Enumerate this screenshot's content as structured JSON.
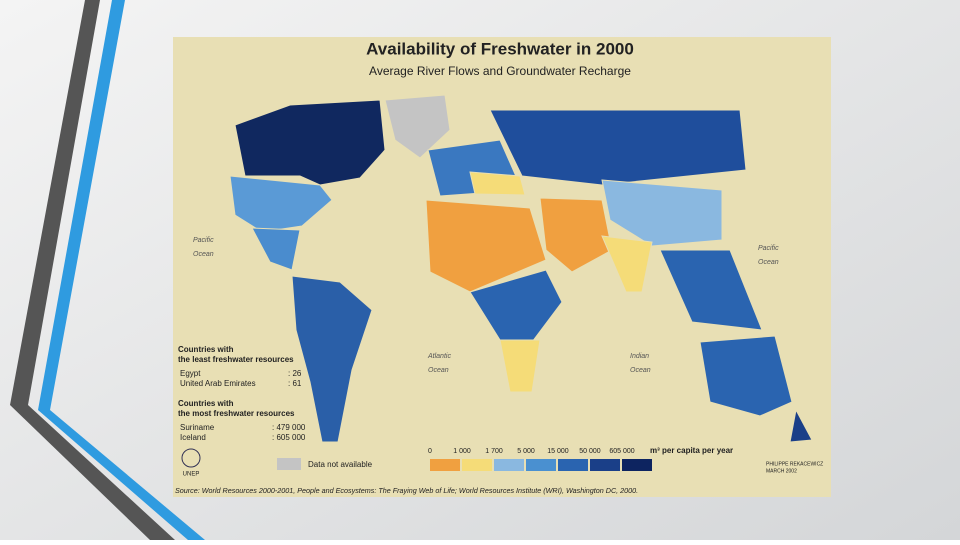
{
  "map": {
    "title": "Availability of Freshwater in 2000",
    "subtitle": "Average River Flows and Groundwater Recharge",
    "oceans": [
      [
        "Pacific",
        "Ocean"
      ],
      [
        "Pacific",
        "Ocean"
      ],
      [
        "Atlantic",
        "Ocean"
      ],
      [
        "Indian",
        "Ocean"
      ]
    ],
    "least": {
      "heading": [
        "Countries with",
        "the least freshwater resources"
      ],
      "rows": [
        [
          "Egypt",
          ": 26"
        ],
        [
          "United Arab Emirates",
          ": 61"
        ]
      ]
    },
    "most": {
      "heading": [
        "Countries with",
        "the most freshwater resources"
      ],
      "rows": [
        [
          "Suriname",
          ": 479 000"
        ],
        [
          "Iceland",
          ": 605 000"
        ]
      ]
    },
    "legend": {
      "breaks": [
        "0",
        "1 000",
        "1 700",
        "5 000",
        "15 000",
        "50 000",
        "605 000"
      ],
      "unit": "m³ per capita per year",
      "no_data": "Data not available"
    },
    "logo": "UNEP",
    "credit": [
      "PHILIPPE REKACEWICZ",
      "MARCH 2002"
    ],
    "source": "Source: World Resources 2000-2001, People and Ecosystems: The Fraying Web of Life; World Resources Institute (WRI), Washington DC, 2000."
  }
}
